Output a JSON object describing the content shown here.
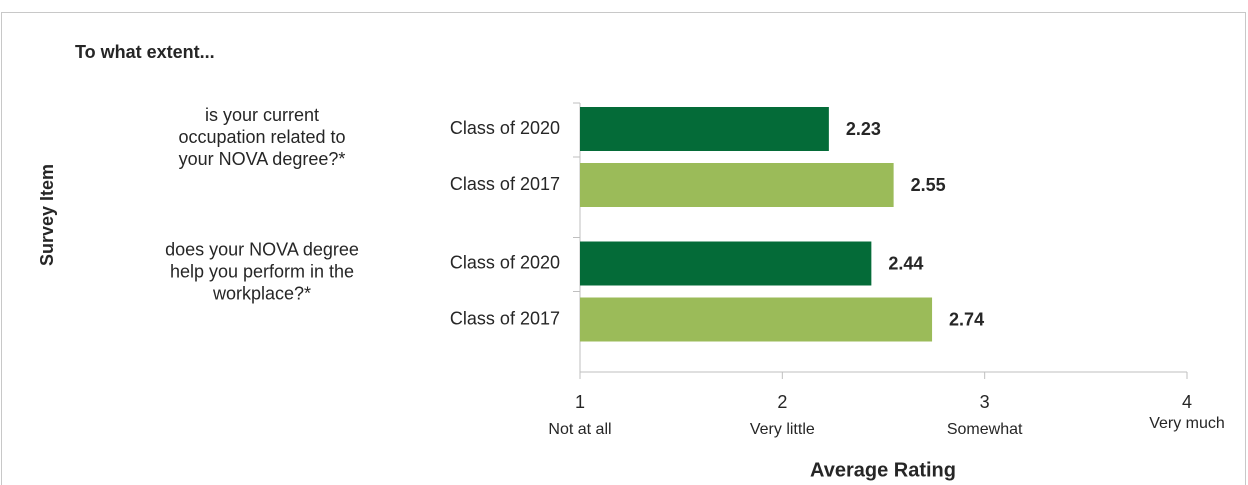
{
  "chart_data": {
    "type": "bar",
    "orientation": "horizontal",
    "subtitle": "To what extent...",
    "ylabel": "Survey Item",
    "xlabel": "Average Rating",
    "categories": [
      [
        "is your current",
        "occupation related to",
        "your NOVA degree?*"
      ],
      [
        "does your NOVA degree",
        "help you perform in the",
        "workplace?*"
      ]
    ],
    "series": [
      {
        "name": "Class of 2020",
        "color": "#046b38",
        "values": [
          2.23,
          2.44
        ]
      },
      {
        "name": "Class of 2017",
        "color": "#9bbb59",
        "values": [
          2.55,
          2.74
        ]
      }
    ],
    "xlim": [
      1,
      4
    ],
    "xticks": [
      1,
      2,
      3,
      4
    ],
    "xtick_descriptions": [
      "Not at all",
      "Very little",
      "Somewhat",
      "Very much"
    ]
  }
}
